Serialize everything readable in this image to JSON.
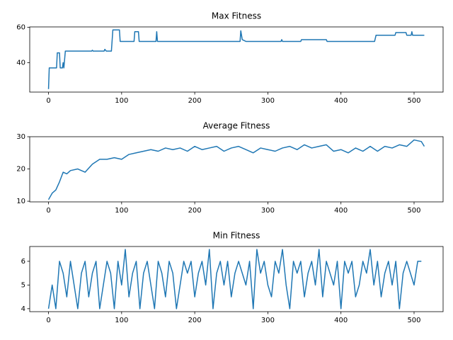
{
  "chart_data": [
    {
      "type": "line",
      "title": "Max Fitness",
      "color": "#1f77b4",
      "x": [
        0,
        1,
        11,
        12,
        15,
        16,
        19,
        20,
        21,
        23,
        59,
        60,
        61,
        76,
        77,
        79,
        86,
        88,
        97,
        98,
        117,
        118,
        123,
        124,
        147,
        148,
        149,
        262,
        263,
        265,
        270,
        318,
        319,
        320,
        345,
        346,
        380,
        381,
        446,
        448,
        474,
        475,
        489,
        490,
        496,
        497,
        498,
        514
      ],
      "values": [
        25,
        37,
        37,
        45.5,
        45.5,
        37,
        37,
        40,
        37,
        46.5,
        46.5,
        47,
        46.5,
        46.5,
        47.5,
        46.5,
        46.5,
        58.5,
        58.5,
        52,
        52,
        57.5,
        57.5,
        52,
        52,
        57.5,
        52,
        52,
        58,
        53,
        52,
        52,
        53,
        52,
        52,
        53,
        53,
        52,
        52,
        55.5,
        55.5,
        57,
        57,
        55.5,
        55.5,
        57.5,
        55.5,
        55.5
      ],
      "xlim": [
        -25.7,
        539.7
      ],
      "ylim": [
        23.3,
        60.2
      ],
      "xticks": [
        0,
        100,
        200,
        300,
        400,
        500
      ],
      "yticks": [
        40,
        60
      ]
    },
    {
      "type": "line",
      "title": "Average Fitness",
      "color": "#1f77b4",
      "x": [
        0,
        5,
        10,
        15,
        20,
        25,
        30,
        40,
        50,
        60,
        70,
        80,
        90,
        100,
        110,
        120,
        130,
        140,
        150,
        160,
        170,
        180,
        190,
        200,
        210,
        220,
        230,
        240,
        250,
        260,
        270,
        280,
        290,
        300,
        310,
        320,
        330,
        340,
        350,
        360,
        370,
        380,
        390,
        400,
        410,
        420,
        430,
        440,
        450,
        460,
        470,
        480,
        490,
        500,
        510,
        514
      ],
      "values": [
        10.5,
        12.5,
        13.5,
        16,
        19,
        18.5,
        19.5,
        20,
        19,
        21.5,
        23,
        23,
        23.5,
        23,
        24.5,
        25,
        25.5,
        26,
        25.5,
        26.5,
        26,
        26.5,
        25.5,
        27,
        26,
        26.5,
        27,
        25.5,
        26.5,
        27,
        26,
        25,
        26.5,
        26,
        25.5,
        26.5,
        27,
        26,
        27.5,
        26.5,
        27,
        27.5,
        25.5,
        26,
        25,
        26.5,
        25.5,
        27,
        25.5,
        27,
        26.5,
        27.5,
        27,
        29,
        28.5,
        27
      ],
      "xlim": [
        -25.7,
        539.7
      ],
      "ylim": [
        9.8,
        30
      ],
      "xticks": [
        0,
        100,
        200,
        300,
        400,
        500
      ],
      "yticks": [
        10,
        20,
        30
      ]
    },
    {
      "type": "line",
      "title": "Min Fitness",
      "color": "#1f77b4",
      "x": [
        0,
        5,
        10,
        15,
        20,
        25,
        30,
        35,
        40,
        45,
        50,
        55,
        60,
        65,
        70,
        75,
        80,
        85,
        90,
        95,
        100,
        105,
        110,
        115,
        120,
        125,
        130,
        135,
        140,
        145,
        150,
        155,
        160,
        165,
        170,
        175,
        180,
        185,
        190,
        195,
        200,
        205,
        210,
        215,
        220,
        225,
        230,
        235,
        240,
        245,
        250,
        255,
        260,
        265,
        270,
        275,
        280,
        285,
        290,
        295,
        300,
        305,
        310,
        315,
        320,
        325,
        330,
        335,
        340,
        345,
        350,
        355,
        360,
        365,
        370,
        375,
        380,
        385,
        390,
        395,
        400,
        405,
        410,
        415,
        420,
        425,
        430,
        435,
        440,
        445,
        450,
        455,
        460,
        465,
        470,
        475,
        480,
        485,
        490,
        495,
        500,
        505,
        510
      ],
      "values": [
        4,
        5,
        4,
        6,
        5.5,
        4.5,
        6,
        5,
        4,
        5.5,
        6,
        4.5,
        5.5,
        6,
        4,
        5,
        6,
        5.5,
        4,
        6,
        5,
        6.5,
        4.5,
        5.5,
        6,
        4,
        5.5,
        6,
        5,
        4,
        6,
        5.5,
        4.5,
        6,
        5.5,
        4,
        5,
        6,
        5.5,
        6,
        4.5,
        5.5,
        6,
        5,
        6.5,
        4,
        5.5,
        6,
        5,
        6,
        4.5,
        5.5,
        6,
        5.5,
        5,
        6,
        4,
        6.5,
        5.5,
        6,
        5,
        4.5,
        6,
        5.5,
        6.5,
        5,
        4,
        6,
        5.5,
        6,
        4.5,
        5.5,
        6,
        5,
        6.5,
        4.5,
        6,
        5.5,
        5,
        6,
        4,
        6,
        5.5,
        6,
        4.5,
        5,
        6,
        5.5,
        6.5,
        5,
        6,
        4.5,
        5.5,
        6,
        5,
        6,
        4,
        5.5,
        6,
        5.5,
        5,
        6,
        6
      ],
      "xlim": [
        -25.7,
        539.7
      ],
      "ylim": [
        3.875,
        6.625
      ],
      "xticks": [
        0,
        100,
        200,
        300,
        400,
        500
      ],
      "yticks": [
        4,
        5,
        6
      ]
    }
  ]
}
